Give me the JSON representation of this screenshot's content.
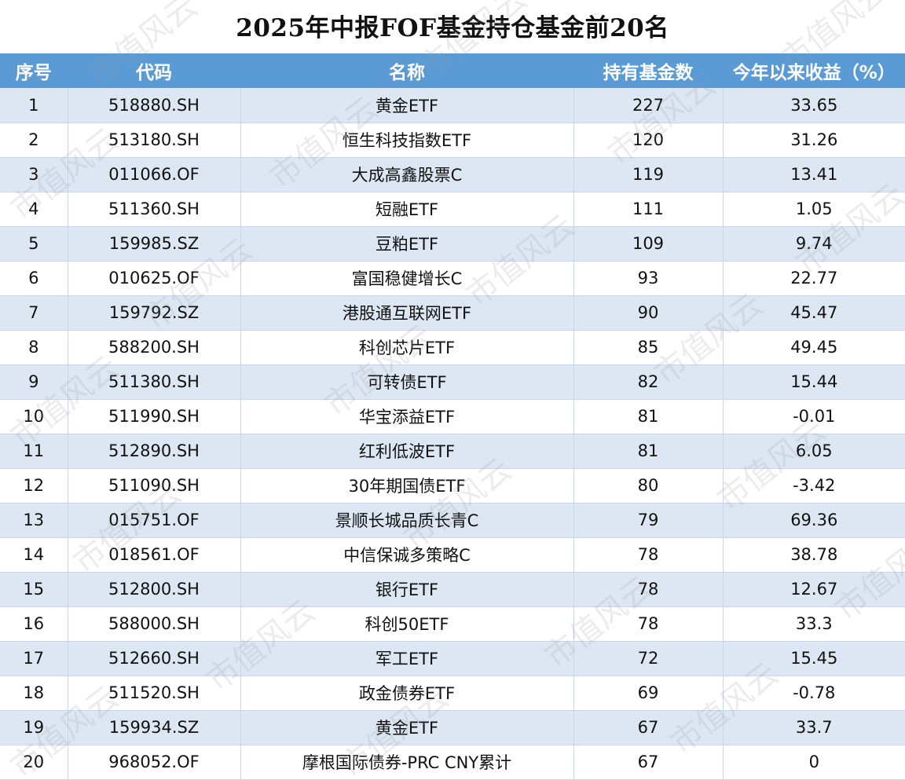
{
  "chart_data": {
    "type": "table",
    "title": "2025年中报FOF基金持仓基金前20名",
    "columns": [
      "序号",
      "代码",
      "名称",
      "持有基金数",
      "今年以来收益（%）"
    ],
    "rows": [
      [
        "1",
        "518880.SH",
        "黄金ETF",
        "227",
        "33.65"
      ],
      [
        "2",
        "513180.SH",
        "恒生科技指数ETF",
        "120",
        "31.26"
      ],
      [
        "3",
        "011066.OF",
        "大成高鑫股票C",
        "119",
        "13.41"
      ],
      [
        "4",
        "511360.SH",
        "短融ETF",
        "111",
        "1.05"
      ],
      [
        "5",
        "159985.SZ",
        "豆粕ETF",
        "109",
        "9.74"
      ],
      [
        "6",
        "010625.OF",
        "富国稳健增长C",
        "93",
        "22.77"
      ],
      [
        "7",
        "159792.SZ",
        "港股通互联网ETF",
        "90",
        "45.47"
      ],
      [
        "8",
        "588200.SH",
        "科创芯片ETF",
        "85",
        "49.45"
      ],
      [
        "9",
        "511380.SH",
        "可转债ETF",
        "82",
        "15.44"
      ],
      [
        "10",
        "511990.SH",
        "华宝添益ETF",
        "81",
        "-0.01"
      ],
      [
        "11",
        "512890.SH",
        "红利低波ETF",
        "81",
        "6.05"
      ],
      [
        "12",
        "511090.SH",
        "30年期国债ETF",
        "80",
        "-3.42"
      ],
      [
        "13",
        "015751.OF",
        "景顺长城品质长青C",
        "79",
        "69.36"
      ],
      [
        "14",
        "018561.OF",
        "中信保诚多策略C",
        "78",
        "38.78"
      ],
      [
        "15",
        "512800.SH",
        "银行ETF",
        "78",
        "12.67"
      ],
      [
        "16",
        "588000.SH",
        "科创50ETF",
        "78",
        "33.3"
      ],
      [
        "17",
        "512660.SH",
        "军工ETF",
        "72",
        "15.45"
      ],
      [
        "18",
        "511520.SH",
        "政金债券ETF",
        "69",
        "-0.78"
      ],
      [
        "19",
        "159934.SZ",
        "黄金ETF",
        "67",
        "33.7"
      ],
      [
        "20",
        "968052.OF",
        "摩根国际债券-PRC CNY累计",
        "67",
        "0"
      ]
    ]
  },
  "watermark": {
    "text": "市值风云"
  },
  "colors": {
    "header_bg": "#5b9bd5",
    "header_text": "#ffffff",
    "row_band": "#dde7f4",
    "row_plain": "#ffffff",
    "grid_line": "#c8d6e8"
  }
}
